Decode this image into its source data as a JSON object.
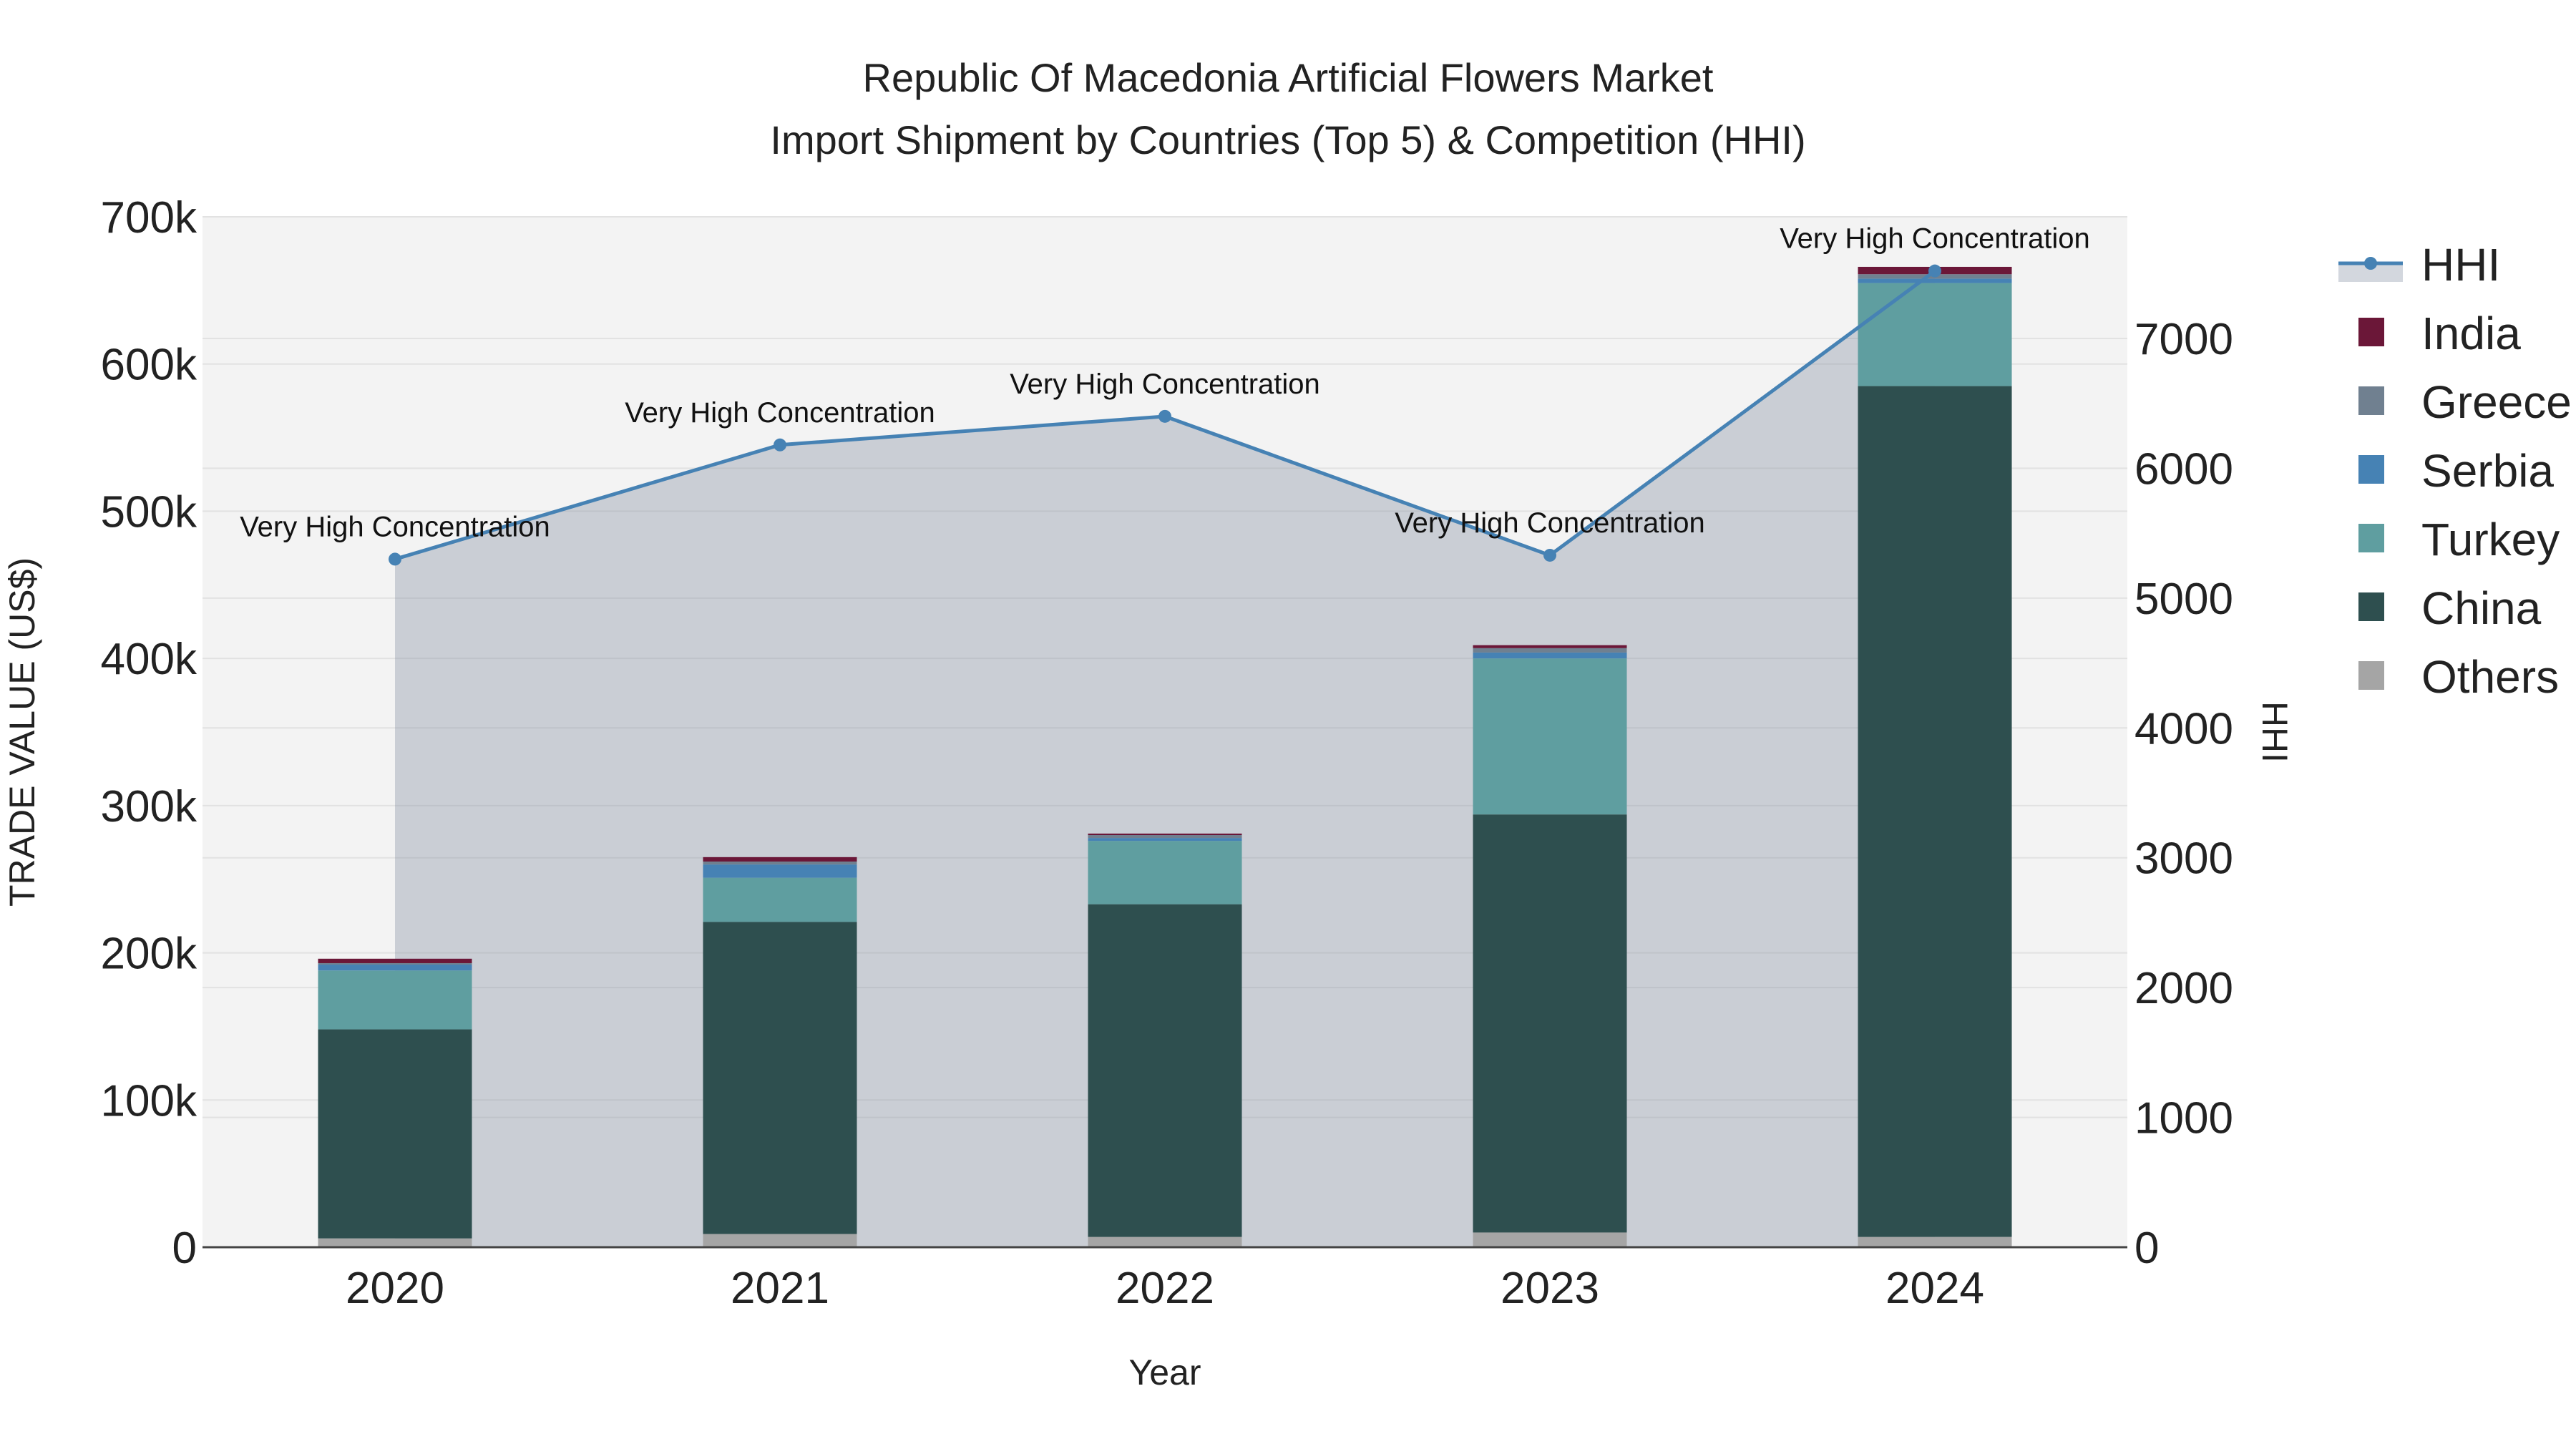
{
  "chart_data": {
    "type": "bar",
    "title_line1": "Republic Of Macedonia Artificial Flowers Market",
    "title_line2": "Import Shipment by Countries (Top 5) & Competition (HHI)",
    "xlabel": "Year",
    "ylabel": "TRADE VALUE (US$)",
    "y2label": "HHI",
    "categories": [
      "2020",
      "2021",
      "2022",
      "2023",
      "2024"
    ],
    "ylim": [
      0,
      700000
    ],
    "y2lim": [
      0,
      7937
    ],
    "yticks": [
      {
        "value": 0,
        "label": "0"
      },
      {
        "value": 100000,
        "label": "100k"
      },
      {
        "value": 200000,
        "label": "200k"
      },
      {
        "value": 300000,
        "label": "300k"
      },
      {
        "value": 400000,
        "label": "400k"
      },
      {
        "value": 500000,
        "label": "500k"
      },
      {
        "value": 600000,
        "label": "600k"
      },
      {
        "value": 700000,
        "label": "700k"
      }
    ],
    "y2ticks": [
      {
        "value": 0,
        "label": "0"
      },
      {
        "value": 1000,
        "label": "1000"
      },
      {
        "value": 2000,
        "label": "2000"
      },
      {
        "value": 3000,
        "label": "3000"
      },
      {
        "value": 4000,
        "label": "4000"
      },
      {
        "value": 5000,
        "label": "5000"
      },
      {
        "value": 6000,
        "label": "6000"
      },
      {
        "value": 7000,
        "label": "7000"
      }
    ],
    "series": [
      {
        "name": "Others",
        "color": "#a5a5a5",
        "values": [
          6000,
          9000,
          7000,
          10000,
          7000
        ]
      },
      {
        "name": "China",
        "color": "#2e4f4f",
        "values": [
          142000,
          212000,
          226000,
          284000,
          578000
        ]
      },
      {
        "name": "Turkey",
        "color": "#5f9ea0",
        "values": [
          40000,
          30000,
          43000,
          106000,
          70000
        ]
      },
      {
        "name": "Serbia",
        "color": "#4682b4",
        "values": [
          4000,
          9000,
          2000,
          4000,
          3000
        ]
      },
      {
        "name": "Greece",
        "color": "#708090",
        "values": [
          1000,
          2000,
          2000,
          3000,
          3000
        ]
      },
      {
        "name": "India",
        "color": "#6b1738",
        "values": [
          3000,
          3000,
          1000,
          2000,
          5000
        ]
      }
    ],
    "hhi": {
      "name": "HHI",
      "color": "#4682b4",
      "values": [
        5300,
        6180,
        6400,
        5330,
        7520
      ],
      "annotations": [
        "Very High Concentration",
        "Very High Concentration",
        "Very High Concentration",
        "Very High Concentration",
        "Very High Concentration"
      ]
    },
    "legend": [
      "HHI",
      "India",
      "Greece",
      "Serbia",
      "Turkey",
      "China",
      "Others"
    ],
    "legend_position": "right"
  }
}
